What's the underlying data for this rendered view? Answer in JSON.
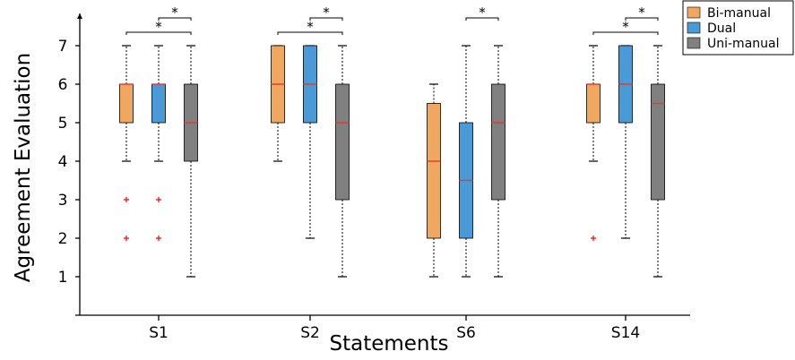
{
  "chart_data": {
    "type": "box",
    "xlabel": "Statements",
    "ylabel": "Agreement Evaluation",
    "ylim": [
      0,
      8
    ],
    "yticks": [
      1,
      2,
      3,
      4,
      5,
      6,
      7
    ],
    "categories": [
      "S1",
      "S2",
      "S6",
      "S14"
    ],
    "legend_position": "top-right",
    "series": [
      {
        "name": "Bi-manual",
        "color": "#f0a860",
        "boxes": [
          {
            "whisker_low": 4,
            "q1": 5,
            "median": 6,
            "q3": 6,
            "whisker_high": 7,
            "outliers": [
              3,
              2
            ]
          },
          {
            "whisker_low": 4,
            "q1": 5,
            "median": 6,
            "q3": 7,
            "whisker_high": 7,
            "outliers": []
          },
          {
            "whisker_low": 1,
            "q1": 2,
            "median": 4,
            "q3": 5.5,
            "whisker_high": 6,
            "outliers": []
          },
          {
            "whisker_low": 4,
            "q1": 5,
            "median": 6,
            "q3": 6,
            "whisker_high": 7,
            "outliers": [
              2
            ]
          }
        ]
      },
      {
        "name": "Dual",
        "color": "#4a9ad8",
        "boxes": [
          {
            "whisker_low": 4,
            "q1": 5,
            "median": 6,
            "q3": 6,
            "whisker_high": 7,
            "outliers": [
              3,
              2
            ]
          },
          {
            "whisker_low": 2,
            "q1": 5,
            "median": 6,
            "q3": 7,
            "whisker_high": 7,
            "outliers": []
          },
          {
            "whisker_low": 1,
            "q1": 2,
            "median": 3.5,
            "q3": 5,
            "whisker_high": 7,
            "outliers": []
          },
          {
            "whisker_low": 2,
            "q1": 5,
            "median": 6,
            "q3": 7,
            "whisker_high": 7,
            "outliers": []
          }
        ]
      },
      {
        "name": "Uni-manual",
        "color": "#808080",
        "boxes": [
          {
            "whisker_low": 1,
            "q1": 4,
            "median": 5,
            "q3": 6,
            "whisker_high": 7,
            "outliers": []
          },
          {
            "whisker_low": 1,
            "q1": 3,
            "median": 5,
            "q3": 6,
            "whisker_high": 7,
            "outliers": []
          },
          {
            "whisker_low": 1,
            "q1": 3,
            "median": 5,
            "q3": 6,
            "whisker_high": 7,
            "outliers": []
          },
          {
            "whisker_low": 1,
            "q1": 3,
            "median": 5.5,
            "q3": 6,
            "whisker_high": 7,
            "outliers": []
          }
        ]
      }
    ],
    "significance": [
      {
        "category": "S1",
        "from": "Bi-manual",
        "to": "Uni-manual",
        "label": "*"
      },
      {
        "category": "S1",
        "from": "Dual",
        "to": "Uni-manual",
        "label": "*"
      },
      {
        "category": "S2",
        "from": "Bi-manual",
        "to": "Uni-manual",
        "label": "*"
      },
      {
        "category": "S2",
        "from": "Dual",
        "to": "Uni-manual",
        "label": "*"
      },
      {
        "category": "S6",
        "from": "Dual",
        "to": "Uni-manual",
        "label": "*"
      },
      {
        "category": "S14",
        "from": "Bi-manual",
        "to": "Uni-manual",
        "label": "*"
      },
      {
        "category": "S14",
        "from": "Dual",
        "to": "Uni-manual",
        "label": "*"
      }
    ],
    "colors": {
      "median": "#e8392a",
      "outlier": "#ff0000",
      "axis": "#000000"
    }
  }
}
